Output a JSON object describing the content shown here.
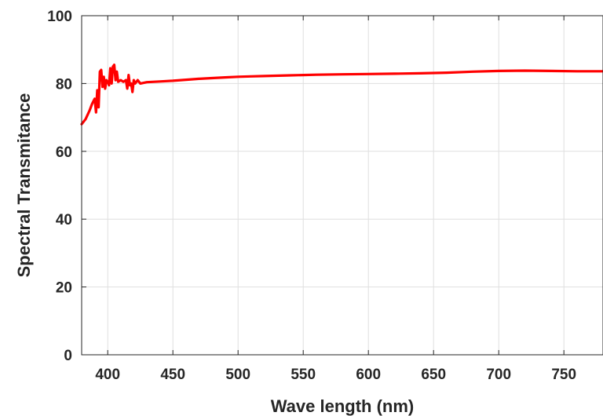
{
  "chart_data": {
    "type": "line",
    "title": "",
    "xlabel": "Wave length (nm)",
    "ylabel": "Spectral Transmitance",
    "xlim": [
      380,
      780
    ],
    "ylim": [
      0,
      100
    ],
    "xticks": [
      400,
      450,
      500,
      550,
      600,
      650,
      700,
      750
    ],
    "xtick_labels": [
      "400",
      "450",
      "500",
      "550",
      "600",
      "650",
      "700",
      "750"
    ],
    "yticks": [
      0,
      20,
      40,
      60,
      80,
      100
    ],
    "ytick_labels": [
      "0",
      "20",
      "40",
      "60",
      "80",
      "100"
    ],
    "grid": true,
    "legend": "none",
    "series": [
      {
        "color": "#ff0000",
        "x": [
          380,
          383,
          386,
          388,
          390,
          391,
          392,
          393,
          394,
          395,
          396,
          397,
          398,
          399,
          400,
          401,
          402,
          403,
          404,
          405,
          406,
          407,
          408,
          410,
          412,
          414,
          415,
          416,
          417,
          418,
          419,
          420,
          421,
          423,
          425,
          430,
          440,
          450,
          460,
          470,
          480,
          490,
          500,
          510,
          520,
          540,
          560,
          580,
          600,
          620,
          640,
          660,
          680,
          700,
          720,
          740,
          760,
          780
        ],
        "y": [
          68,
          69.5,
          72,
          74,
          75.5,
          71.5,
          78,
          73,
          83.5,
          84,
          79,
          82,
          78.5,
          81,
          80.5,
          79.5,
          84.5,
          80,
          85,
          85.5,
          81,
          83.5,
          80.5,
          81,
          80.5,
          81,
          78.5,
          82.5,
          79.5,
          80,
          77.5,
          81,
          80,
          81,
          80,
          80.4,
          80.6,
          80.8,
          81.1,
          81.4,
          81.6,
          81.8,
          82,
          82.1,
          82.2,
          82.4,
          82.6,
          82.7,
          82.8,
          82.9,
          83,
          83.2,
          83.5,
          83.7,
          83.8,
          83.7,
          83.6,
          83.6
        ]
      }
    ]
  }
}
